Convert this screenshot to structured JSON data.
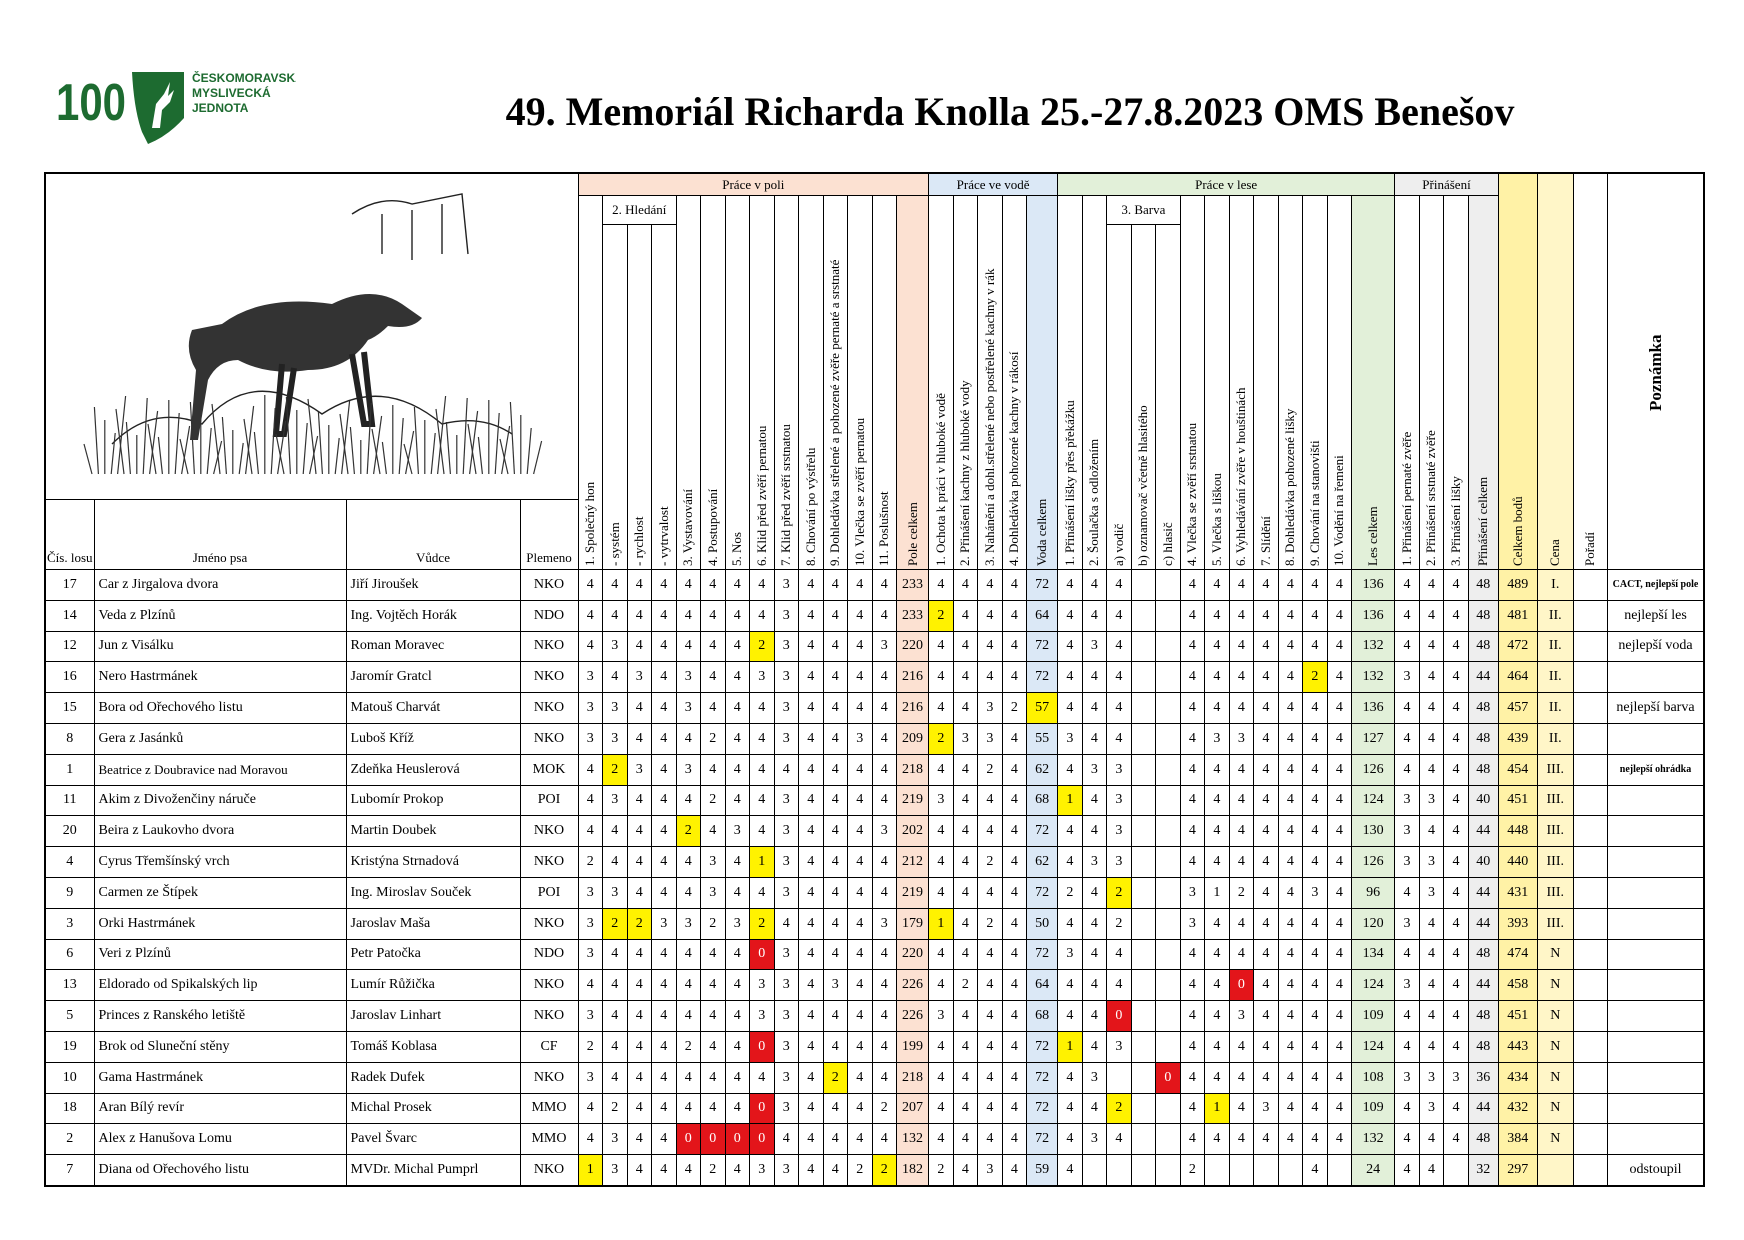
{
  "logo": {
    "number": "100",
    "lines": [
      "ČESKOMORAVSKÁ",
      "MYSLIVECKÁ",
      "JEDNOTA"
    ]
  },
  "title": "49. Memoriál Richarda Knolla 25.-27.8.2023 OMS Benešov",
  "table": {
    "id_headers": [
      "Čís. losu",
      "Jméno psa",
      "Vůdce",
      "Plemeno"
    ],
    "groups": [
      {
        "label": "Práce v poli",
        "color": "#fce1d2",
        "columns": [
          "1. Společný hon",
          {
            "label": "2. Hledání",
            "columns": [
              "- systém",
              "- rychlost",
              "- vytrvalost"
            ]
          },
          "3. Vystavování",
          "4. Postupování",
          "5. Nos",
          "6. Klid před zvěří pernatou",
          "7. Klid před zvěří srstnatou",
          "8. Chování po výstřelu",
          "9. Dohledávka střelené a pohozené zvěře pernaté a srstnaté",
          "10. Vlečka se zvěří pernatou",
          "11. Poslušnost"
        ],
        "total": "Pole celkem"
      },
      {
        "label": "Práce ve vodě",
        "color": "#dbe8f6",
        "columns": [
          "1. Ochota k práci v hluboké vodě",
          "2. Přinášení kachny z hluboké vody",
          "3. Nahánění a dohl.střelené nebo postřelené kachny v rák",
          "4. Dohledávka pohozené kachny v rákosí"
        ],
        "total": "Voda celkem"
      },
      {
        "label": "Práce v lese",
        "color": "#e2f0d9",
        "columns": [
          "1. Přinášení lišky přes překážku",
          "2. Šoulačka s odložením",
          {
            "label": "3. Barva",
            "columns": [
              "a) vodič",
              "b) oznamovač včetně hlasitého",
              "c) hlasič"
            ]
          },
          "4. Vlečka se zvěří srstnatou",
          "5. Vlečka s liškou",
          "6. Vyhledávání zvěře v houštinách",
          "7. Slídění",
          "8. Dohledávka pohozené lišky",
          "9. Chování na stanovišti",
          "10. Vodění na řemeni"
        ],
        "total": "Les celkem"
      },
      {
        "label": "Přinášení",
        "color": "#eeeeee",
        "columns": [
          "1. Přinášení pernaté zvěře",
          "2. Přinášení srstnaté zvěře",
          "3. Přinášení lišky"
        ],
        "total": "Přinášení celkem"
      }
    ],
    "tail": [
      {
        "label": "Celkem bodů",
        "color": "#fff2a6"
      },
      {
        "label": "Cena",
        "color": "#fff6c8"
      },
      {
        "label": "Pořadí"
      },
      {
        "label": "Poznámka"
      }
    ],
    "rows": [
      [
        17,
        "Car z Jirgalova dvora",
        "Jiří Jiroušek",
        "NKO",
        4,
        4,
        4,
        4,
        4,
        4,
        4,
        4,
        3,
        4,
        4,
        4,
        4,
        233,
        4,
        4,
        4,
        4,
        72,
        4,
        4,
        4,
        null,
        null,
        4,
        4,
        4,
        4,
        4,
        4,
        4,
        136,
        4,
        4,
        4,
        48,
        489,
        "I.",
        null,
        "CACT, nejlepší pole"
      ],
      [
        14,
        "Veda z Plzínů",
        "Ing. Vojtěch Horák",
        "NDO",
        4,
        4,
        4,
        4,
        4,
        4,
        4,
        4,
        3,
        4,
        4,
        4,
        4,
        233,
        {
          "text": 2,
          "color": "#fff200"
        },
        4,
        4,
        4,
        64,
        4,
        4,
        4,
        null,
        null,
        4,
        4,
        4,
        4,
        4,
        4,
        4,
        136,
        4,
        4,
        4,
        48,
        481,
        "II.",
        null,
        "nejlepší les"
      ],
      [
        12,
        "Jun z Visálku",
        "Roman Moravec",
        "NKO",
        4,
        3,
        4,
        4,
        4,
        4,
        4,
        {
          "text": 2,
          "color": "#fff200"
        },
        3,
        4,
        4,
        4,
        3,
        220,
        4,
        4,
        4,
        4,
        72,
        4,
        3,
        4,
        null,
        null,
        4,
        4,
        4,
        4,
        4,
        4,
        4,
        132,
        4,
        4,
        4,
        48,
        472,
        "II.",
        null,
        "nejlepší voda"
      ],
      [
        16,
        "Nero Hastrmánek",
        "Jaromír Gratcl",
        "NKO",
        3,
        4,
        3,
        4,
        3,
        4,
        4,
        3,
        3,
        4,
        4,
        4,
        4,
        216,
        4,
        4,
        4,
        4,
        72,
        4,
        4,
        4,
        null,
        null,
        4,
        4,
        4,
        4,
        4,
        {
          "text": 2,
          "color": "#fff200"
        },
        4,
        132,
        3,
        4,
        4,
        44,
        464,
        "II.",
        null,
        null
      ],
      [
        15,
        "Bora od Ořechového listu",
        "Matouš Charvát",
        "NKO",
        3,
        3,
        4,
        4,
        3,
        4,
        4,
        4,
        3,
        4,
        4,
        4,
        4,
        216,
        4,
        4,
        3,
        2,
        {
          "text": 57,
          "color": "#fff200"
        },
        4,
        4,
        4,
        null,
        null,
        4,
        4,
        4,
        4,
        4,
        4,
        4,
        136,
        4,
        4,
        4,
        48,
        457,
        "II.",
        null,
        "nejlepší barva"
      ],
      [
        8,
        "Gera z Jasánků",
        "Luboš Kříž",
        "NKO",
        3,
        3,
        4,
        4,
        4,
        2,
        4,
        4,
        3,
        4,
        4,
        3,
        4,
        209,
        {
          "text": 2,
          "color": "#fff200"
        },
        3,
        3,
        4,
        55,
        3,
        4,
        4,
        null,
        null,
        4,
        3,
        3,
        4,
        4,
        4,
        4,
        127,
        4,
        4,
        4,
        48,
        439,
        "II.",
        null,
        null
      ],
      [
        1,
        "Beatrice z Doubravice nad Moravou",
        "Zdeňka Heuslerová",
        "MOK",
        4,
        {
          "text": 2,
          "color": "#fff200"
        },
        3,
        4,
        3,
        4,
        4,
        4,
        4,
        4,
        4,
        4,
        4,
        218,
        4,
        4,
        2,
        4,
        62,
        4,
        3,
        3,
        null,
        null,
        4,
        4,
        4,
        4,
        4,
        4,
        4,
        126,
        4,
        4,
        4,
        48,
        454,
        "III.",
        null,
        "nejlepší ohrádka"
      ],
      [
        11,
        "Akim z Divoženčiny náruče",
        "Lubomír Prokop",
        "POI",
        4,
        3,
        4,
        4,
        4,
        2,
        4,
        4,
        3,
        4,
        4,
        4,
        4,
        219,
        3,
        4,
        4,
        4,
        68,
        {
          "text": 1,
          "color": "#fff200"
        },
        4,
        3,
        null,
        null,
        4,
        4,
        4,
        4,
        4,
        4,
        4,
        124,
        3,
        3,
        4,
        40,
        451,
        "III.",
        null,
        null
      ],
      [
        20,
        "Beira z Laukovho dvora",
        "Martin Doubek",
        "NKO",
        4,
        4,
        4,
        4,
        {
          "text": 2,
          "color": "#fff200"
        },
        4,
        3,
        4,
        3,
        4,
        4,
        4,
        3,
        202,
        4,
        4,
        4,
        4,
        72,
        4,
        4,
        3,
        null,
        null,
        4,
        4,
        4,
        4,
        4,
        4,
        4,
        130,
        3,
        4,
        4,
        44,
        448,
        "III.",
        null,
        null
      ],
      [
        4,
        "Cyrus Třemšínský vrch",
        "Kristýna Strnadová",
        "NKO",
        2,
        4,
        4,
        4,
        4,
        3,
        4,
        {
          "text": 1,
          "color": "#fff200"
        },
        3,
        4,
        4,
        4,
        4,
        212,
        4,
        4,
        2,
        4,
        62,
        4,
        3,
        3,
        null,
        null,
        4,
        4,
        4,
        4,
        4,
        4,
        4,
        126,
        3,
        3,
        4,
        40,
        440,
        "III.",
        null,
        null
      ],
      [
        9,
        "Carmen ze Štípek",
        "Ing. Miroslav Souček",
        "POI",
        3,
        3,
        4,
        4,
        4,
        3,
        4,
        4,
        3,
        4,
        4,
        4,
        4,
        219,
        4,
        4,
        4,
        4,
        72,
        2,
        4,
        {
          "text": 2,
          "color": "#fff200"
        },
        null,
        null,
        3,
        1,
        2,
        4,
        4,
        3,
        4,
        96,
        4,
        3,
        4,
        44,
        431,
        "III.",
        null,
        null
      ],
      [
        3,
        "Orki Hastrmánek",
        "Jaroslav Maša",
        "NKO",
        3,
        {
          "text": 2,
          "color": "#fff200"
        },
        {
          "text": 2,
          "color": "#fff200"
        },
        3,
        3,
        2,
        3,
        {
          "text": 2,
          "color": "#fff200"
        },
        4,
        4,
        4,
        4,
        3,
        179,
        {
          "text": 1,
          "color": "#fff200"
        },
        4,
        2,
        4,
        50,
        4,
        4,
        2,
        null,
        null,
        3,
        4,
        4,
        4,
        4,
        4,
        4,
        120,
        3,
        4,
        4,
        44,
        393,
        "III.",
        null,
        null
      ],
      [
        6,
        "Veri z Plzínů",
        "Petr Patočka",
        "NDO",
        3,
        4,
        4,
        4,
        4,
        4,
        4,
        {
          "text": 0,
          "color": "#e3151a"
        },
        3,
        4,
        4,
        4,
        4,
        220,
        4,
        4,
        4,
        4,
        72,
        3,
        4,
        4,
        null,
        null,
        4,
        4,
        4,
        4,
        4,
        4,
        4,
        134,
        4,
        4,
        4,
        48,
        474,
        "N",
        null,
        null
      ],
      [
        13,
        "Eldorado od Spikalských lip",
        "Lumír Růžička",
        "NKO",
        4,
        4,
        4,
        4,
        4,
        4,
        4,
        3,
        3,
        4,
        3,
        4,
        4,
        226,
        4,
        2,
        4,
        4,
        64,
        4,
        4,
        4,
        null,
        null,
        4,
        4,
        {
          "text": 0,
          "color": "#e3151a"
        },
        4,
        4,
        4,
        4,
        124,
        3,
        4,
        4,
        44,
        458,
        "N",
        null,
        null
      ],
      [
        5,
        "Princes z Ranského letiště",
        "Jaroslav Linhart",
        "NKO",
        3,
        4,
        4,
        4,
        4,
        4,
        4,
        3,
        3,
        4,
        4,
        4,
        4,
        226,
        3,
        4,
        4,
        4,
        68,
        4,
        4,
        {
          "text": 0,
          "color": "#e3151a"
        },
        null,
        null,
        4,
        4,
        3,
        4,
        4,
        4,
        4,
        109,
        4,
        4,
        4,
        48,
        451,
        "N",
        null,
        null
      ],
      [
        19,
        "Brok od Sluneční stěny",
        "Tomáš Koblasa",
        "CF",
        2,
        4,
        4,
        4,
        2,
        4,
        4,
        {
          "text": 0,
          "color": "#e3151a"
        },
        3,
        4,
        4,
        4,
        4,
        199,
        4,
        4,
        4,
        4,
        72,
        {
          "text": 1,
          "color": "#fff200"
        },
        4,
        3,
        null,
        null,
        4,
        4,
        4,
        4,
        4,
        4,
        4,
        124,
        4,
        4,
        4,
        48,
        443,
        "N",
        null,
        null
      ],
      [
        10,
        "Gama Hastrmánek",
        "Radek Dufek",
        "NKO",
        3,
        4,
        4,
        4,
        4,
        4,
        4,
        4,
        3,
        4,
        {
          "text": 2,
          "color": "#fff200"
        },
        4,
        4,
        218,
        4,
        4,
        4,
        4,
        72,
        4,
        3,
        null,
        null,
        {
          "text": 0,
          "color": "#e3151a"
        },
        4,
        4,
        4,
        4,
        4,
        4,
        4,
        108,
        3,
        3,
        3,
        36,
        434,
        "N",
        null,
        null
      ],
      [
        18,
        "Aran Bílý revír",
        "Michal Prosek",
        "MMO",
        4,
        2,
        4,
        4,
        4,
        4,
        4,
        {
          "text": 0,
          "color": "#e3151a"
        },
        3,
        4,
        4,
        4,
        2,
        207,
        4,
        4,
        4,
        4,
        72,
        4,
        4,
        {
          "text": 2,
          "color": "#fff200"
        },
        null,
        null,
        4,
        {
          "text": 1,
          "color": "#fff200"
        },
        4,
        3,
        4,
        4,
        4,
        109,
        4,
        3,
        4,
        44,
        432,
        "N",
        null,
        null
      ],
      [
        2,
        "Alex z Hanušova Lomu",
        "Pavel Švarc",
        "MMO",
        4,
        3,
        4,
        4,
        {
          "text": 0,
          "color": "#e3151a"
        },
        {
          "text": 0,
          "color": "#e3151a"
        },
        {
          "text": 0,
          "color": "#e3151a"
        },
        {
          "text": 0,
          "color": "#e3151a"
        },
        4,
        4,
        4,
        4,
        4,
        132,
        4,
        4,
        4,
        4,
        72,
        4,
        3,
        4,
        null,
        null,
        4,
        4,
        4,
        4,
        4,
        4,
        4,
        132,
        4,
        4,
        4,
        48,
        384,
        "N",
        null,
        null
      ],
      [
        7,
        "Diana od Ořechového listu",
        "MVDr. Michal Pumprl",
        "NKO",
        {
          "text": 1,
          "color": "#fff200"
        },
        3,
        4,
        4,
        4,
        2,
        4,
        3,
        3,
        4,
        4,
        2,
        {
          "text": 2,
          "color": "#fff200"
        },
        182,
        2,
        4,
        3,
        4,
        59,
        4,
        null,
        null,
        null,
        null,
        2,
        null,
        null,
        null,
        null,
        4,
        null,
        24,
        4,
        4,
        null,
        32,
        297,
        null,
        null,
        "odstoupil"
      ]
    ]
  }
}
